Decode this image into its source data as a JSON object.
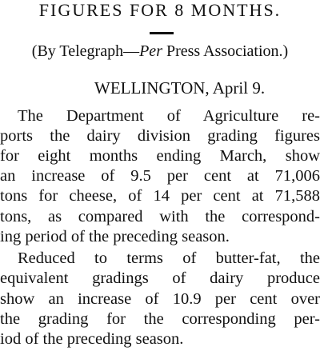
{
  "headline": "FIGURES FOR 8 MONTHS.",
  "byline": {
    "open": "(By Telegraph—",
    "italic": "Per",
    "close": " Press Association.)"
  },
  "dateline": "WELLINGTON, April 9.",
  "paragraphs": [
    {
      "lines": [
        "The Department of Agriculture re-",
        "ports the dairy division grading figures",
        "for eight months ending March, show",
        "an increase of 9.5 per cent at 71,006",
        "tons for cheese, of 14 per cent at 71,588",
        "tons, as compared with the correspond-",
        "ing period of the preceding season."
      ]
    },
    {
      "lines": [
        "Reduced to terms of butter-fat, the",
        "equivalent gradings of dairy produce",
        "show an increase of 10.9 per cent over",
        "the grading for the corresponding per-",
        "iod of the preceding season."
      ]
    }
  ]
}
